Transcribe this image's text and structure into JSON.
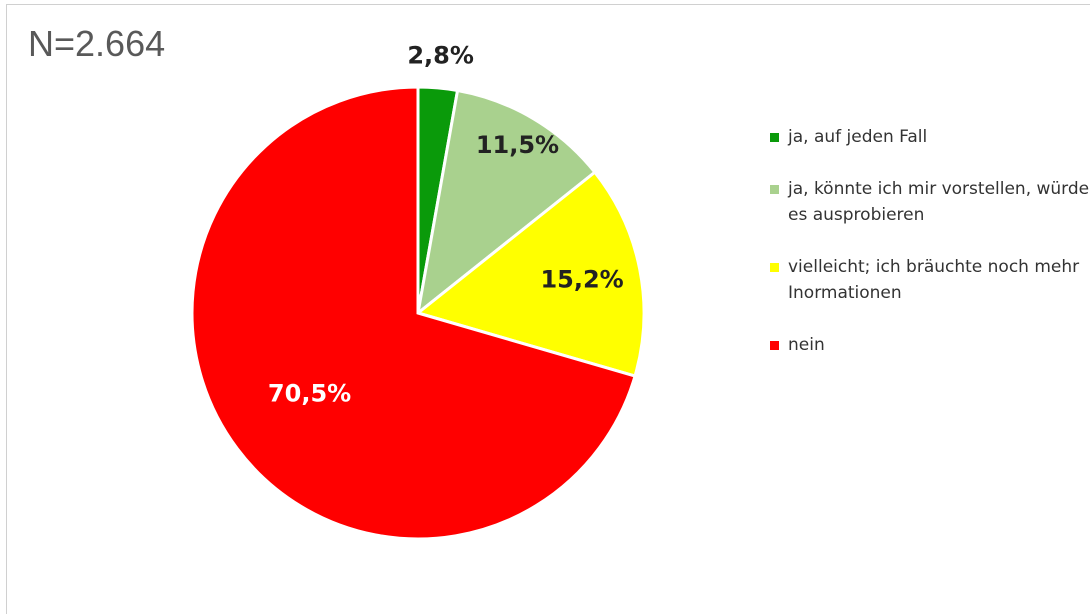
{
  "chart_data": {
    "type": "pie",
    "title": "N=2.664",
    "categories": [
      "ja, auf jeden Fall",
      "ja, könnte ich mir vorstellen, würde es ausprobieren",
      "vielleicht; ich bräuchte noch mehr Inormationen",
      "nein"
    ],
    "values": [
      2.8,
      11.5,
      15.2,
      70.5
    ],
    "value_labels": [
      "2,8%",
      "11,5%",
      "15,2%",
      "70,5%"
    ],
    "colors": [
      "#0a9a0a",
      "#a9d18e",
      "#ffff00",
      "#ff0000"
    ],
    "label_colors": [
      "#222222",
      "#222222",
      "#222222",
      "#ffffff"
    ],
    "legend": "right"
  }
}
